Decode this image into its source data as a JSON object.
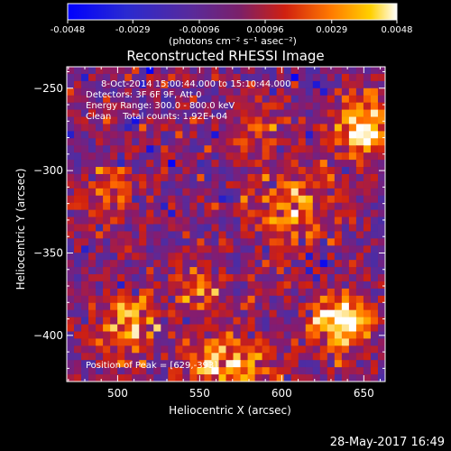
{
  "chart_data": {
    "type": "heatmap",
    "title": "Reconstructed RHESSI Image",
    "xlabel": "Heliocentric X (arcsec)",
    "ylabel": "Heliocentric Y (arcsec)",
    "xlim": [
      469,
      663
    ],
    "ylim": [
      -428,
      -237
    ],
    "xticks": [
      500,
      550,
      600,
      650
    ],
    "yticks": [
      -250,
      -300,
      -350,
      -400
    ],
    "colorbar": {
      "min": -0.0048,
      "max": 0.0048,
      "ticks": [
        "-0.0048",
        "-0.0029",
        "-0.00096",
        "0.00096",
        "0.0029",
        "0.0048"
      ],
      "unit_label": "(photons cm⁻² s⁻¹ asec⁻²)"
    },
    "colormap_stops": [
      "#0000ff",
      "#3a2fb0",
      "#5a2a9a",
      "#8a1a6a",
      "#d02010",
      "#ff6a00",
      "#ffc000",
      "#ffffff"
    ],
    "annotations": [
      "8-Oct-2014 15:00:44.000 to 15:10:44.000",
      "Detectors: 3F 6F 9F, Att 0",
      "Energy Range: 300.0 - 800.0 keV",
      "Clean    Total counts: 1.92E+04"
    ],
    "peak_label": "Position of Peak = [629,-393]",
    "peak": [
      629,
      -393
    ]
  },
  "footer": {
    "timestamp": "28-May-2017 16:49"
  }
}
